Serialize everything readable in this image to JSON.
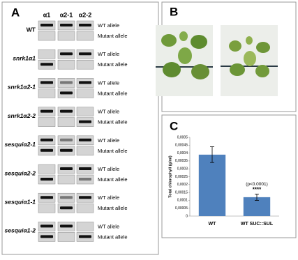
{
  "panel_a": {
    "letter": "A",
    "columns": [
      "α1",
      "α2-1",
      "α2-2"
    ],
    "alleles": [
      "WT allele",
      "Mutant allele"
    ],
    "genotypes": [
      "WT",
      "snrk1α1",
      "snrk1α2-1",
      "snrk1α2-2",
      "sesquiα2-1",
      "sesquiα2-2",
      "sesquiα1-1",
      "sesquiα1-2"
    ]
  },
  "panel_b": {
    "letter": "B"
  },
  "chart_data": {
    "type": "bar",
    "panel_label": "C",
    "ylabel": "Total chlorophyll (g/ml)",
    "categories": [
      "WT",
      "WT SUC::SUL"
    ],
    "values": [
      0.00039,
      0.00012
    ],
    "errors": [
      5e-05,
      2e-05
    ],
    "color": "#4f81bd",
    "ylim": [
      0,
      0.0005
    ],
    "yticks": [
      0,
      {
        "value": 5e-05,
        "label": "0,00005"
      },
      {
        "value": 0.0001,
        "label": "0,0001"
      },
      {
        "value": 0.00015,
        "label": "0,00015"
      },
      {
        "value": 0.0002,
        "label": "0,0002"
      },
      {
        "value": 0.00025,
        "label": "0,00025"
      },
      {
        "value": 0.0003,
        "label": "0,0003"
      },
      {
        "value": 0.00035,
        "label": "0,00035"
      },
      {
        "value": 0.0004,
        "label": "0,0004"
      },
      {
        "value": 0.00045,
        "label": "0,00045"
      },
      {
        "value": 0.0005,
        "label": "0,0005"
      }
    ],
    "annotations": [
      "(p<0.0001)",
      "****"
    ]
  }
}
